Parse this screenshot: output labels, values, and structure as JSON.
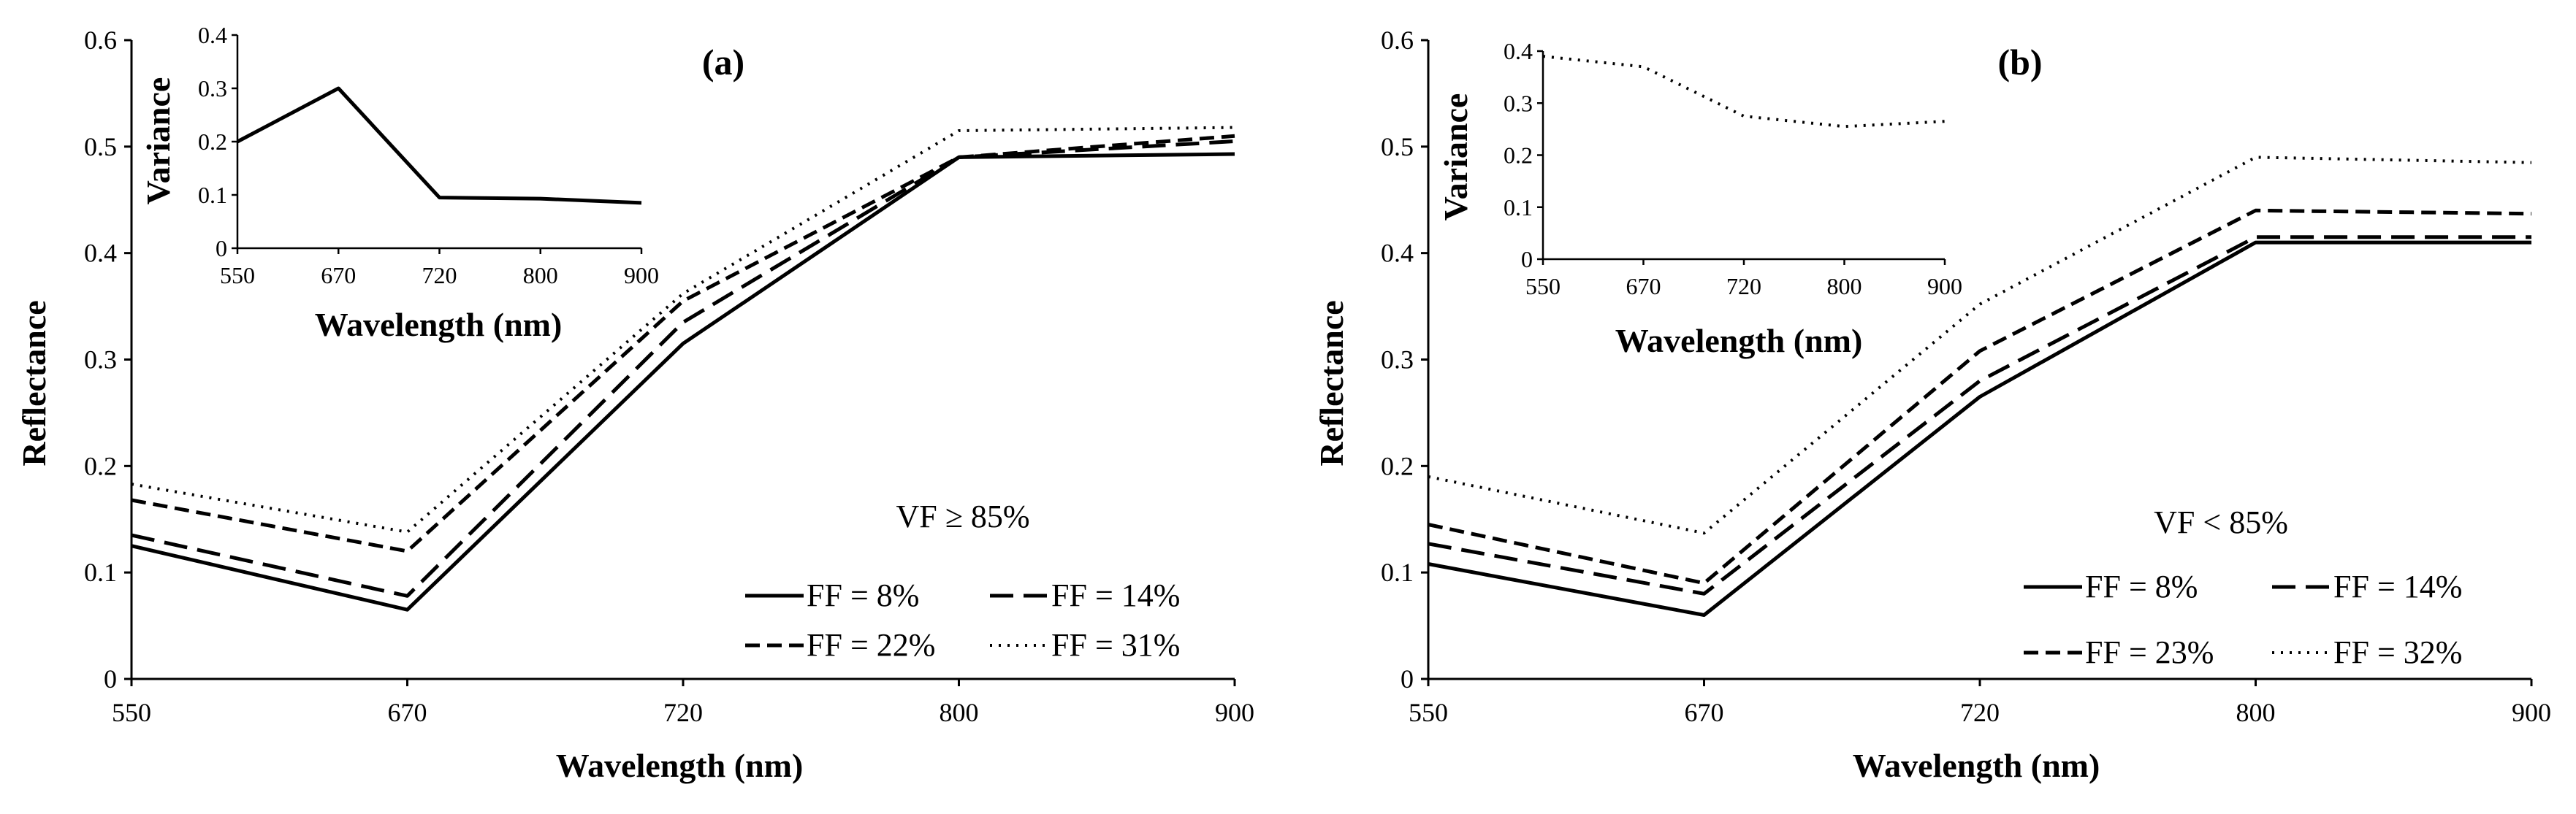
{
  "chart_data": [
    {
      "type": "line",
      "panel_label": "(a)",
      "xlabel": "Wavelength (nm)",
      "ylabel": "Reflectance",
      "x": [
        550,
        670,
        720,
        800,
        900
      ],
      "x_ticks": [
        "550",
        "670",
        "720",
        "800",
        "900"
      ],
      "ylim": [
        0,
        0.6
      ],
      "y_ticks": [
        "0",
        "0.1",
        "0.2",
        "0.3",
        "0.4",
        "0.5",
        "0.6"
      ],
      "grid": false,
      "annotation": "VF ≥ 85%",
      "legend_placement": "bottom-right",
      "series": [
        {
          "name": "FF = 8%",
          "style": "solid",
          "values": [
            0.125,
            0.065,
            0.315,
            0.49,
            0.493
          ]
        },
        {
          "name": "FF = 14%",
          "style": "long-dash",
          "values": [
            0.135,
            0.078,
            0.335,
            0.49,
            0.505
          ]
        },
        {
          "name": "FF = 22%",
          "style": "dash",
          "values": [
            0.168,
            0.12,
            0.355,
            0.49,
            0.51
          ]
        },
        {
          "name": "FF = 31%",
          "style": "dot",
          "values": [
            0.183,
            0.138,
            0.362,
            0.515,
            0.518
          ]
        }
      ],
      "inset": {
        "type": "line",
        "xlabel": "Wavelength (nm)",
        "ylabel": "Variance",
        "x": [
          550,
          670,
          720,
          800,
          900
        ],
        "x_ticks": [
          "550",
          "670",
          "720",
          "800",
          "900"
        ],
        "ylim": [
          0,
          0.4
        ],
        "y_ticks": [
          "0",
          "0.1",
          "0.2",
          "0.3",
          "0.4"
        ],
        "series": [
          {
            "style": "solid",
            "values": [
              0.2,
              0.3,
              0.095,
              0.093,
              0.085
            ]
          }
        ]
      }
    },
    {
      "type": "line",
      "panel_label": "(b)",
      "xlabel": "Wavelength (nm)",
      "ylabel": "Reflectance",
      "x": [
        550,
        670,
        720,
        800,
        900
      ],
      "x_ticks": [
        "550",
        "670",
        "720",
        "800",
        "900"
      ],
      "ylim": [
        0,
        0.6
      ],
      "y_ticks": [
        "0",
        "0.1",
        "0.2",
        "0.3",
        "0.4",
        "0.5",
        "0.6"
      ],
      "grid": false,
      "annotation": "VF < 85%",
      "legend_placement": "bottom-right",
      "series": [
        {
          "name": "FF = 8%",
          "style": "solid",
          "values": [
            0.108,
            0.06,
            0.265,
            0.41,
            0.41
          ]
        },
        {
          "name": "FF = 14%",
          "style": "long-dash",
          "values": [
            0.127,
            0.08,
            0.28,
            0.415,
            0.415
          ]
        },
        {
          "name": "FF = 23%",
          "style": "dash",
          "values": [
            0.145,
            0.09,
            0.308,
            0.44,
            0.437
          ]
        },
        {
          "name": "FF = 32%",
          "style": "dot",
          "values": [
            0.19,
            0.137,
            0.352,
            0.49,
            0.485
          ]
        }
      ],
      "inset": {
        "type": "line",
        "xlabel": "Wavelength (nm)",
        "ylabel": "Variance",
        "x": [
          550,
          670,
          720,
          800,
          900
        ],
        "x_ticks": [
          "550",
          "670",
          "720",
          "800",
          "900"
        ],
        "ylim": [
          0,
          0.4
        ],
        "y_ticks": [
          "0",
          "0.1",
          "0.2",
          "0.3",
          "0.4"
        ],
        "series": [
          {
            "style": "dot",
            "values": [
              0.39,
              0.37,
              0.275,
              0.255,
              0.265
            ]
          }
        ]
      }
    }
  ]
}
